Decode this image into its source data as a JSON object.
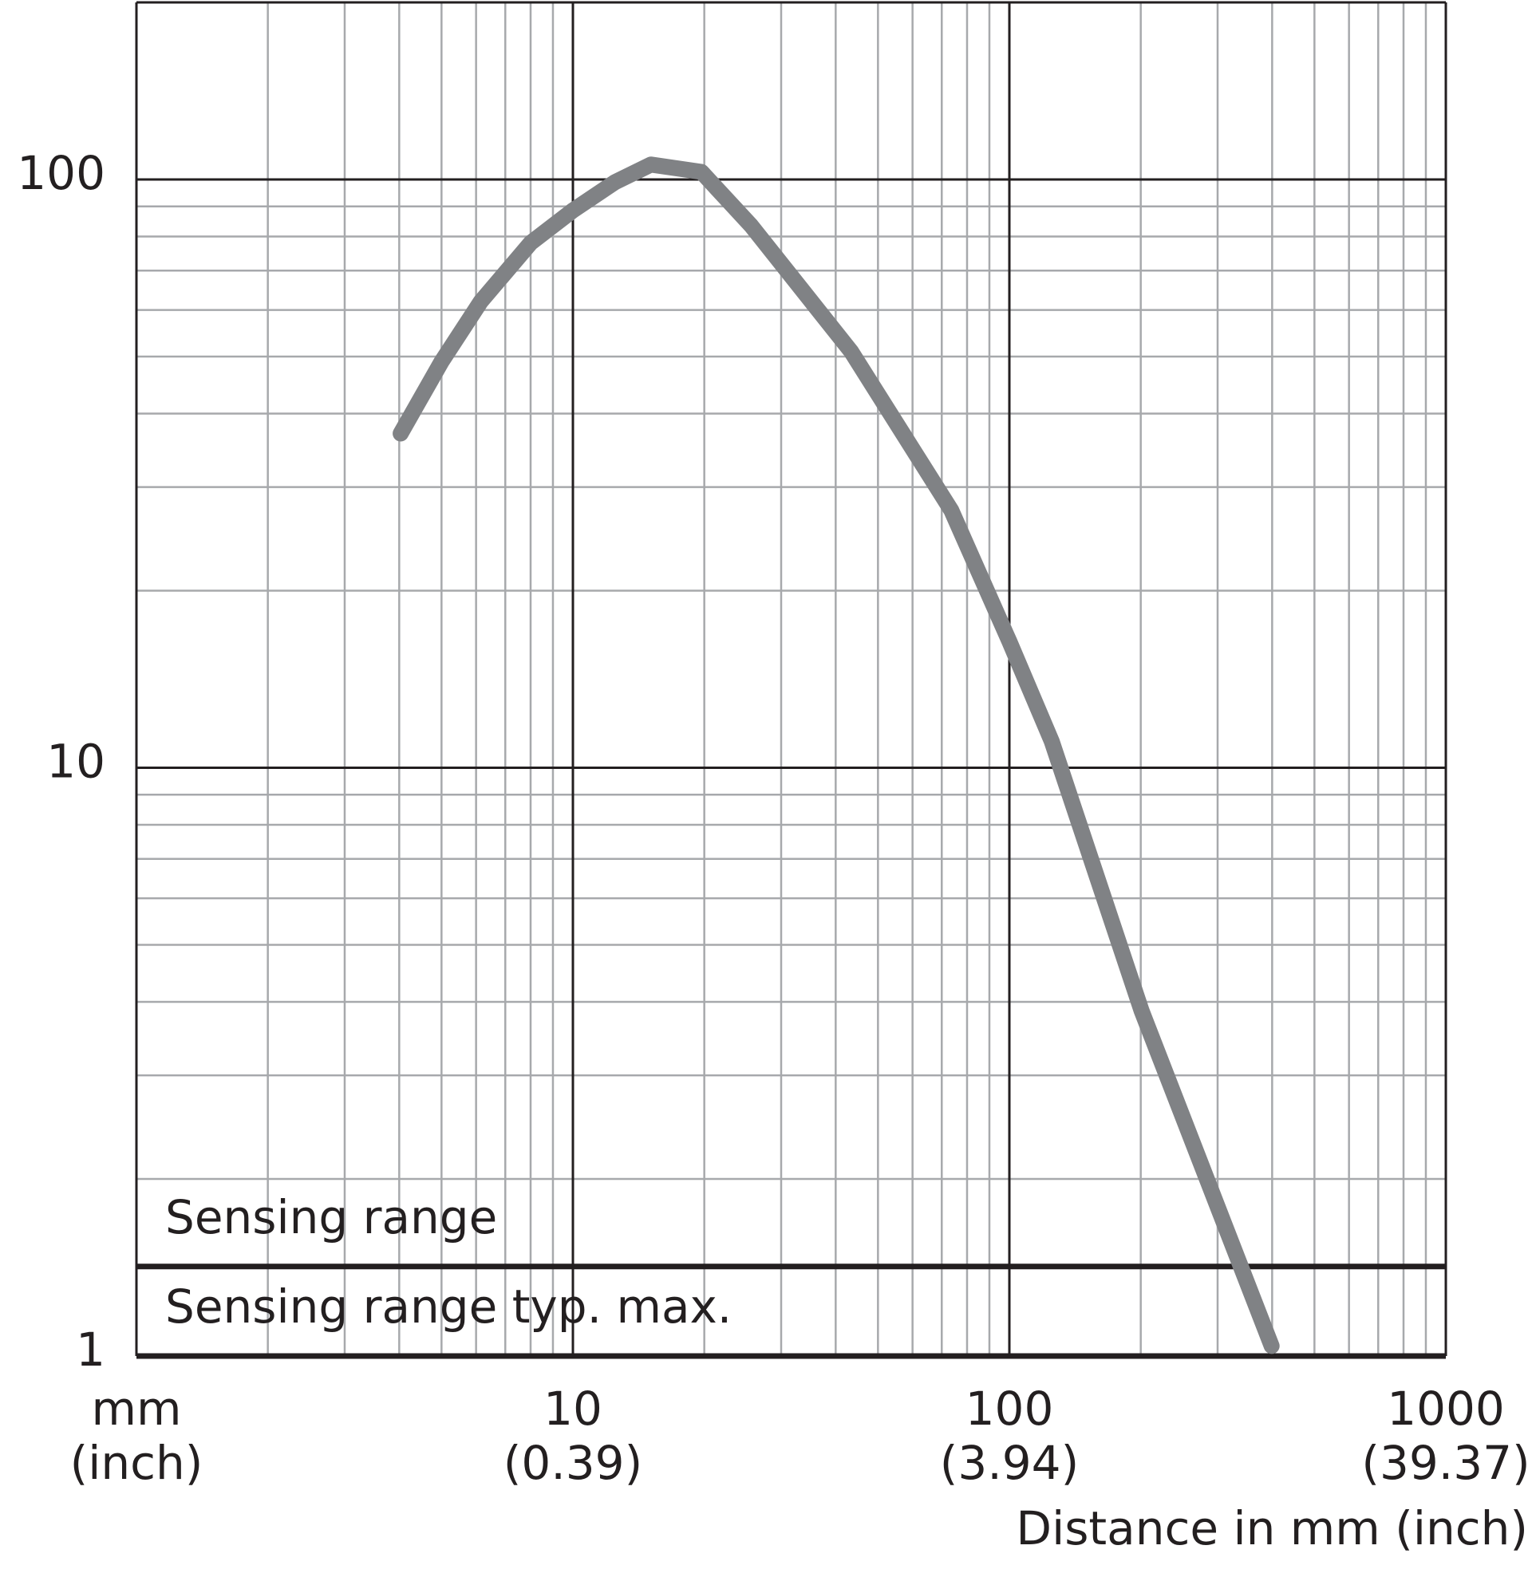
{
  "chart_data": {
    "type": "line",
    "x_label": "Distance in mm (inch)",
    "log_x": true,
    "log_y": true,
    "grid": true,
    "xlim": [
      1,
      1000
    ],
    "ylim": [
      1,
      200
    ],
    "xticks": [
      {
        "value": 1,
        "label": "mm",
        "sublabel": "(inch)"
      },
      {
        "value": 10,
        "label": "10",
        "sublabel": "(0.39)"
      },
      {
        "value": 100,
        "label": "100",
        "sublabel": "(3.94)"
      },
      {
        "value": 1000,
        "label": "1000",
        "sublabel": "(39.37)"
      }
    ],
    "yticks": [
      1,
      10,
      100
    ],
    "bands": [
      {
        "label": "Sensing range",
        "y": 1.42
      },
      {
        "label": "Sensing range typ. max.",
        "y": 1
      }
    ],
    "series": [
      {
        "color": "#808285",
        "x": [
          4.03,
          5,
          6.15,
          8,
          10,
          12.5,
          15.1,
          19.7,
          25.6,
          43.4,
          73.6,
          100,
          125,
          201,
          399
        ],
        "values": [
          37,
          49,
          62,
          78,
          88.6,
          99,
          106,
          103,
          83.5,
          51,
          27.4,
          16.4,
          11.1,
          3.86,
          1.04
        ]
      }
    ]
  }
}
